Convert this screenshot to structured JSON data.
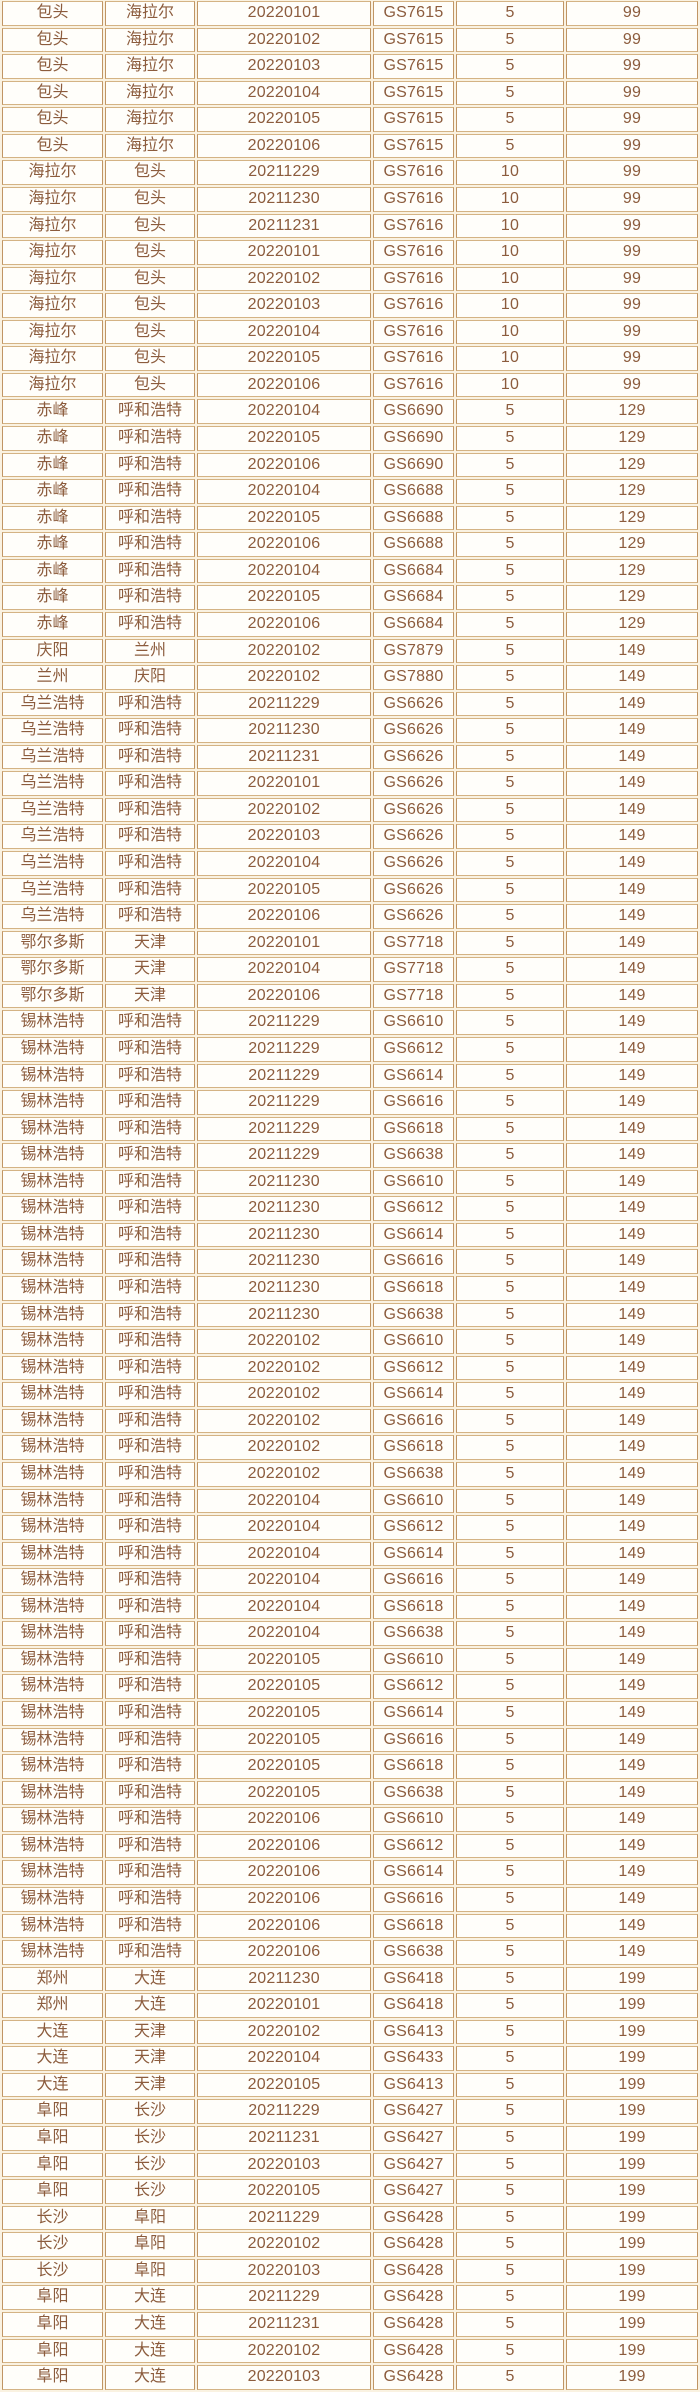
{
  "colors": {
    "page_background": "#faf2e1",
    "cell_background": "#fffefa",
    "border_vertical": "#c09564",
    "border_horizontal": "#d4b384",
    "text": "#8c5c3d"
  },
  "chart_data": {
    "type": "table",
    "header_visible": false,
    "grid": true,
    "column_keys": [
      "origin_city",
      "destination_city",
      "flight_date",
      "flight_number",
      "quantity",
      "price"
    ],
    "rows": [
      [
        "包头",
        "海拉尔",
        "20220101",
        "GS7615",
        "5",
        "99"
      ],
      [
        "包头",
        "海拉尔",
        "20220102",
        "GS7615",
        "5",
        "99"
      ],
      [
        "包头",
        "海拉尔",
        "20220103",
        "GS7615",
        "5",
        "99"
      ],
      [
        "包头",
        "海拉尔",
        "20220104",
        "GS7615",
        "5",
        "99"
      ],
      [
        "包头",
        "海拉尔",
        "20220105",
        "GS7615",
        "5",
        "99"
      ],
      [
        "包头",
        "海拉尔",
        "20220106",
        "GS7615",
        "5",
        "99"
      ],
      [
        "海拉尔",
        "包头",
        "20211229",
        "GS7616",
        "10",
        "99"
      ],
      [
        "海拉尔",
        "包头",
        "20211230",
        "GS7616",
        "10",
        "99"
      ],
      [
        "海拉尔",
        "包头",
        "20211231",
        "GS7616",
        "10",
        "99"
      ],
      [
        "海拉尔",
        "包头",
        "20220101",
        "GS7616",
        "10",
        "99"
      ],
      [
        "海拉尔",
        "包头",
        "20220102",
        "GS7616",
        "10",
        "99"
      ],
      [
        "海拉尔",
        "包头",
        "20220103",
        "GS7616",
        "10",
        "99"
      ],
      [
        "海拉尔",
        "包头",
        "20220104",
        "GS7616",
        "10",
        "99"
      ],
      [
        "海拉尔",
        "包头",
        "20220105",
        "GS7616",
        "10",
        "99"
      ],
      [
        "海拉尔",
        "包头",
        "20220106",
        "GS7616",
        "10",
        "99"
      ],
      [
        "赤峰",
        "呼和浩特",
        "20220104",
        "GS6690",
        "5",
        "129"
      ],
      [
        "赤峰",
        "呼和浩特",
        "20220105",
        "GS6690",
        "5",
        "129"
      ],
      [
        "赤峰",
        "呼和浩特",
        "20220106",
        "GS6690",
        "5",
        "129"
      ],
      [
        "赤峰",
        "呼和浩特",
        "20220104",
        "GS6688",
        "5",
        "129"
      ],
      [
        "赤峰",
        "呼和浩特",
        "20220105",
        "GS6688",
        "5",
        "129"
      ],
      [
        "赤峰",
        "呼和浩特",
        "20220106",
        "GS6688",
        "5",
        "129"
      ],
      [
        "赤峰",
        "呼和浩特",
        "20220104",
        "GS6684",
        "5",
        "129"
      ],
      [
        "赤峰",
        "呼和浩特",
        "20220105",
        "GS6684",
        "5",
        "129"
      ],
      [
        "赤峰",
        "呼和浩特",
        "20220106",
        "GS6684",
        "5",
        "129"
      ],
      [
        "庆阳",
        "兰州",
        "20220102",
        "GS7879",
        "5",
        "149"
      ],
      [
        "兰州",
        "庆阳",
        "20220102",
        "GS7880",
        "5",
        "149"
      ],
      [
        "乌兰浩特",
        "呼和浩特",
        "20211229",
        "GS6626",
        "5",
        "149"
      ],
      [
        "乌兰浩特",
        "呼和浩特",
        "20211230",
        "GS6626",
        "5",
        "149"
      ],
      [
        "乌兰浩特",
        "呼和浩特",
        "20211231",
        "GS6626",
        "5",
        "149"
      ],
      [
        "乌兰浩特",
        "呼和浩特",
        "20220101",
        "GS6626",
        "5",
        "149"
      ],
      [
        "乌兰浩特",
        "呼和浩特",
        "20220102",
        "GS6626",
        "5",
        "149"
      ],
      [
        "乌兰浩特",
        "呼和浩特",
        "20220103",
        "GS6626",
        "5",
        "149"
      ],
      [
        "乌兰浩特",
        "呼和浩特",
        "20220104",
        "GS6626",
        "5",
        "149"
      ],
      [
        "乌兰浩特",
        "呼和浩特",
        "20220105",
        "GS6626",
        "5",
        "149"
      ],
      [
        "乌兰浩特",
        "呼和浩特",
        "20220106",
        "GS6626",
        "5",
        "149"
      ],
      [
        "鄂尔多斯",
        "天津",
        "20220101",
        "GS7718",
        "5",
        "149"
      ],
      [
        "鄂尔多斯",
        "天津",
        "20220104",
        "GS7718",
        "5",
        "149"
      ],
      [
        "鄂尔多斯",
        "天津",
        "20220106",
        "GS7718",
        "5",
        "149"
      ],
      [
        "锡林浩特",
        "呼和浩特",
        "20211229",
        "GS6610",
        "5",
        "149"
      ],
      [
        "锡林浩特",
        "呼和浩特",
        "20211229",
        "GS6612",
        "5",
        "149"
      ],
      [
        "锡林浩特",
        "呼和浩特",
        "20211229",
        "GS6614",
        "5",
        "149"
      ],
      [
        "锡林浩特",
        "呼和浩特",
        "20211229",
        "GS6616",
        "5",
        "149"
      ],
      [
        "锡林浩特",
        "呼和浩特",
        "20211229",
        "GS6618",
        "5",
        "149"
      ],
      [
        "锡林浩特",
        "呼和浩特",
        "20211229",
        "GS6638",
        "5",
        "149"
      ],
      [
        "锡林浩特",
        "呼和浩特",
        "20211230",
        "GS6610",
        "5",
        "149"
      ],
      [
        "锡林浩特",
        "呼和浩特",
        "20211230",
        "GS6612",
        "5",
        "149"
      ],
      [
        "锡林浩特",
        "呼和浩特",
        "20211230",
        "GS6614",
        "5",
        "149"
      ],
      [
        "锡林浩特",
        "呼和浩特",
        "20211230",
        "GS6616",
        "5",
        "149"
      ],
      [
        "锡林浩特",
        "呼和浩特",
        "20211230",
        "GS6618",
        "5",
        "149"
      ],
      [
        "锡林浩特",
        "呼和浩特",
        "20211230",
        "GS6638",
        "5",
        "149"
      ],
      [
        "锡林浩特",
        "呼和浩特",
        "20220102",
        "GS6610",
        "5",
        "149"
      ],
      [
        "锡林浩特",
        "呼和浩特",
        "20220102",
        "GS6612",
        "5",
        "149"
      ],
      [
        "锡林浩特",
        "呼和浩特",
        "20220102",
        "GS6614",
        "5",
        "149"
      ],
      [
        "锡林浩特",
        "呼和浩特",
        "20220102",
        "GS6616",
        "5",
        "149"
      ],
      [
        "锡林浩特",
        "呼和浩特",
        "20220102",
        "GS6618",
        "5",
        "149"
      ],
      [
        "锡林浩特",
        "呼和浩特",
        "20220102",
        "GS6638",
        "5",
        "149"
      ],
      [
        "锡林浩特",
        "呼和浩特",
        "20220104",
        "GS6610",
        "5",
        "149"
      ],
      [
        "锡林浩特",
        "呼和浩特",
        "20220104",
        "GS6612",
        "5",
        "149"
      ],
      [
        "锡林浩特",
        "呼和浩特",
        "20220104",
        "GS6614",
        "5",
        "149"
      ],
      [
        "锡林浩特",
        "呼和浩特",
        "20220104",
        "GS6616",
        "5",
        "149"
      ],
      [
        "锡林浩特",
        "呼和浩特",
        "20220104",
        "GS6618",
        "5",
        "149"
      ],
      [
        "锡林浩特",
        "呼和浩特",
        "20220104",
        "GS6638",
        "5",
        "149"
      ],
      [
        "锡林浩特",
        "呼和浩特",
        "20220105",
        "GS6610",
        "5",
        "149"
      ],
      [
        "锡林浩特",
        "呼和浩特",
        "20220105",
        "GS6612",
        "5",
        "149"
      ],
      [
        "锡林浩特",
        "呼和浩特",
        "20220105",
        "GS6614",
        "5",
        "149"
      ],
      [
        "锡林浩特",
        "呼和浩特",
        "20220105",
        "GS6616",
        "5",
        "149"
      ],
      [
        "锡林浩特",
        "呼和浩特",
        "20220105",
        "GS6618",
        "5",
        "149"
      ],
      [
        "锡林浩特",
        "呼和浩特",
        "20220105",
        "GS6638",
        "5",
        "149"
      ],
      [
        "锡林浩特",
        "呼和浩特",
        "20220106",
        "GS6610",
        "5",
        "149"
      ],
      [
        "锡林浩特",
        "呼和浩特",
        "20220106",
        "GS6612",
        "5",
        "149"
      ],
      [
        "锡林浩特",
        "呼和浩特",
        "20220106",
        "GS6614",
        "5",
        "149"
      ],
      [
        "锡林浩特",
        "呼和浩特",
        "20220106",
        "GS6616",
        "5",
        "149"
      ],
      [
        "锡林浩特",
        "呼和浩特",
        "20220106",
        "GS6618",
        "5",
        "149"
      ],
      [
        "锡林浩特",
        "呼和浩特",
        "20220106",
        "GS6638",
        "5",
        "149"
      ],
      [
        "郑州",
        "大连",
        "20211230",
        "GS6418",
        "5",
        "199"
      ],
      [
        "郑州",
        "大连",
        "20220101",
        "GS6418",
        "5",
        "199"
      ],
      [
        "大连",
        "天津",
        "20220102",
        "GS6413",
        "5",
        "199"
      ],
      [
        "大连",
        "天津",
        "20220104",
        "GS6433",
        "5",
        "199"
      ],
      [
        "大连",
        "天津",
        "20220105",
        "GS6413",
        "5",
        "199"
      ],
      [
        "阜阳",
        "长沙",
        "20211229",
        "GS6427",
        "5",
        "199"
      ],
      [
        "阜阳",
        "长沙",
        "20211231",
        "GS6427",
        "5",
        "199"
      ],
      [
        "阜阳",
        "长沙",
        "20220103",
        "GS6427",
        "5",
        "199"
      ],
      [
        "阜阳",
        "长沙",
        "20220105",
        "GS6427",
        "5",
        "199"
      ],
      [
        "长沙",
        "阜阳",
        "20211229",
        "GS6428",
        "5",
        "199"
      ],
      [
        "长沙",
        "阜阳",
        "20220102",
        "GS6428",
        "5",
        "199"
      ],
      [
        "长沙",
        "阜阳",
        "20220103",
        "GS6428",
        "5",
        "199"
      ],
      [
        "阜阳",
        "大连",
        "20211229",
        "GS6428",
        "5",
        "199"
      ],
      [
        "阜阳",
        "大连",
        "20211231",
        "GS6428",
        "5",
        "199"
      ],
      [
        "阜阳",
        "大连",
        "20220102",
        "GS6428",
        "5",
        "199"
      ],
      [
        "阜阳",
        "大连",
        "20220103",
        "GS6428",
        "5",
        "199"
      ]
    ]
  }
}
